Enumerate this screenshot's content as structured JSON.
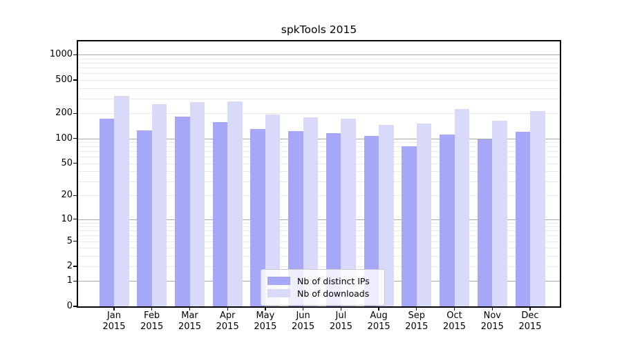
{
  "title": "spkTools 2015",
  "accent_colors": {
    "distinct_ips_bar": "#a7a7f7",
    "downloads_bar": "#d9d9f9",
    "major_gridline": "#a6a6a6",
    "minor_gridline": "#e9e9e9"
  },
  "legend": {
    "entries": [
      {
        "key": "distinct_ips",
        "label": "Nb of distinct IPs",
        "color": "#a7a7f7"
      },
      {
        "key": "downloads",
        "label": "Nb of downloads",
        "color": "#d9d9f9"
      }
    ]
  },
  "y_axis": {
    "tick_labels": [
      "1000",
      "500",
      "200",
      "100",
      "50",
      "20",
      "10",
      "5",
      "2",
      "1",
      "0"
    ],
    "tick_values": [
      1000,
      500,
      200,
      100,
      50,
      20,
      10,
      5,
      2,
      1,
      0
    ]
  },
  "chart_data": {
    "type": "bar",
    "title": "spkTools 2015",
    "categories": [
      "Jan 2015",
      "Feb 2015",
      "Mar 2015",
      "Apr 2015",
      "May 2015",
      "Jun 2015",
      "Jul 2015",
      "Aug 2015",
      "Sep 2015",
      "Oct 2015",
      "Nov 2015",
      "Dec 2015"
    ],
    "series": [
      {
        "name": "Nb of distinct IPs",
        "key": "distinct_ips",
        "color": "#a7a7f7",
        "values": [
          172,
          125,
          181,
          156,
          129,
          122,
          115,
          107,
          81,
          112,
          98,
          119
        ]
      },
      {
        "name": "Nb of downloads",
        "key": "downloads",
        "color": "#d9d9f9",
        "values": [
          325,
          258,
          274,
          277,
          194,
          180,
          172,
          145,
          152,
          224,
          163,
          213
        ]
      }
    ],
    "xlabel": "",
    "ylabel": "",
    "yscale": "log(1+v)",
    "ylim": [
      0,
      1450
    ],
    "y_major_gridlines": [
      1,
      10,
      100,
      1000
    ],
    "grid": true,
    "legend_position": "lower center"
  }
}
